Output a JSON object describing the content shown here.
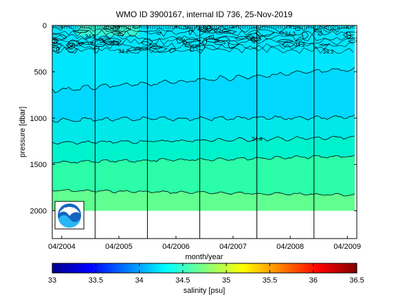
{
  "chart_data": {
    "type": "heatmap",
    "title": "WMO ID 3900167, internal ID 736, 25-Nov-2019",
    "xlabel": "month/year",
    "ylabel": "pressure [dbar]",
    "x_tick_labels": [
      "04/2004",
      "04/2005",
      "04/2006",
      "04/2007",
      "04/2008",
      "04/2009"
    ],
    "y_ticks": [
      0,
      500,
      1000,
      1500,
      2000
    ],
    "ylim": [
      2300,
      0
    ],
    "xlim": [
      "02/2004",
      "06/2009"
    ],
    "y_reversed": true,
    "vertical_lines_at": [
      "11/2004",
      "10/2005",
      "09/2006",
      "09/2007",
      "09/2008"
    ],
    "data_depth_limit": 2000,
    "contour_levels": [
      34.1,
      34.2,
      34.3,
      34.4,
      34.5,
      34.6
    ],
    "contour_depths": [
      {
        "level": 34.6,
        "pressure_start": 1780,
        "pressure_end": 1830
      },
      {
        "level": 34.5,
        "pressure_start": 1480,
        "pressure_end": 1410
      },
      {
        "level": 34.4,
        "pressure_start": 1270,
        "pressure_end": 1210
      },
      {
        "level": 34.3,
        "pressure_start": 1020,
        "pressure_end": 990
      },
      {
        "level": 34.2,
        "pressure_start": 700,
        "pressure_end": 470
      }
    ],
    "contour_labels": [
      {
        "text": "34.4",
        "month": "09/2007",
        "pressure": 1245
      },
      {
        "text": "34.3",
        "month": "12/2008",
        "pressure": 305
      },
      {
        "text": "34.2",
        "month": "06/2008",
        "pressure": 230
      },
      {
        "text": "34.3",
        "month": "04/2008",
        "pressure": 110
      },
      {
        "text": "34.2",
        "month": "10/2004",
        "pressure": 140
      },
      {
        "text": "34.4",
        "month": "03/2005",
        "pressure": 210
      },
      {
        "text": "34.2",
        "month": "05/2005",
        "pressure": 300
      },
      {
        "text": "34.3",
        "month": "02/2004",
        "pressure": 200
      }
    ],
    "colorbar": {
      "label": "salinity [psu]",
      "min": 33,
      "max": 36.5,
      "tick_labels": [
        "33",
        "33.5",
        "34",
        "34.5",
        "35",
        "35.5",
        "36",
        "36.5"
      ],
      "colormap": "jet"
    },
    "logo": "NOAA"
  }
}
